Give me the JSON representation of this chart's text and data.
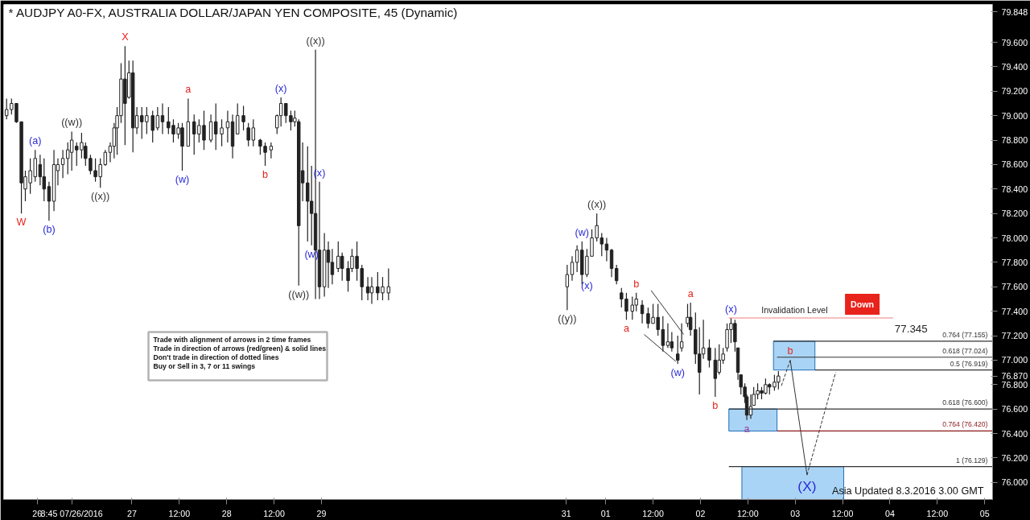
{
  "chart_data": {
    "type": "candlestick",
    "title": "* AUDJPY A0-FX, AUSTRALIA DOLLAR/JAPAN YEN COMPOSITE, 45 (Dynamic)",
    "x": [
      "2016-07-25T16:15",
      "2016-07-25T17:30",
      "2016-07-25T18:45",
      "2016-07-25T20:00",
      "2016-07-25T21:00",
      "2016-07-25T22:15",
      "2016-07-25T23:30",
      "2016-07-26T00:45",
      "2016-07-26T01:45",
      "2016-07-26T03:00",
      "2016-07-26T04:15",
      "2016-07-26T05:15",
      "2016-07-26T06:30",
      "2016-07-26T07:45",
      "2016-07-26T08:45",
      "2016-07-26T10:00",
      "2016-07-26T11:15",
      "2016-07-26T12:15",
      "2016-07-26T13:30",
      "2016-07-26T14:45",
      "2016-07-26T16:00",
      "2016-07-26T17:15",
      "2016-07-26T18:30",
      "2016-07-26T19:30",
      "2016-07-26T20:15",
      "2016-07-26T21:15",
      "2016-07-26T22:15",
      "2016-07-26T23:15",
      "2016-07-27T00:15",
      "2016-07-27T01:15",
      "2016-07-27T02:30",
      "2016-07-27T03:45",
      "2016-07-27T05:15",
      "2016-07-27T06:30",
      "2016-07-27T07:45",
      "2016-07-27T09:15",
      "2016-07-27T10:30",
      "2016-07-27T11:45",
      "2016-07-27T12:45",
      "2016-07-27T14:15",
      "2016-07-27T15:45",
      "2016-07-27T17:00",
      "2016-07-27T18:15",
      "2016-07-27T20:00",
      "2016-07-27T21:15",
      "2016-07-27T22:45",
      "2016-07-28T00:15",
      "2016-07-28T01:30",
      "2016-07-28T02:45",
      "2016-07-28T04:15",
      "2016-07-28T05:30",
      "2016-07-28T06:45",
      "2016-07-28T08:30",
      "2016-07-28T09:45",
      "2016-07-28T11:15",
      "2016-07-28T12:45",
      "2016-07-28T13:45",
      "2016-07-28T15:00",
      "2016-07-28T16:15",
      "2016-07-28T17:15",
      "2016-07-28T18:15",
      "2016-07-28T19:15",
      "2016-07-28T20:30",
      "2016-07-28T21:30",
      "2016-07-28T22:30",
      "2016-07-28T23:30",
      "2016-07-29T00:45",
      "2016-07-29T01:45",
      "2016-07-29T02:45",
      "2016-07-29T04:15",
      "2016-07-29T05:15",
      "2016-07-29T06:45",
      "2016-07-29T07:45",
      "2016-07-29T09:00",
      "2016-07-29T10:15",
      "2016-07-29T11:45",
      "2016-07-29T12:45",
      "2016-07-29T14:15",
      "2016-07-29T15:30",
      "2016-07-29T17:00",
      "2016-07-31T14:15",
      "2016-07-31T15:30",
      "2016-07-31T16:45",
      "2016-07-31T18:00",
      "2016-07-31T19:15",
      "2016-07-31T20:30",
      "2016-07-31T21:45",
      "2016-07-31T23:00",
      "2016-08-01T00:15",
      "2016-08-01T01:30",
      "2016-08-01T02:45",
      "2016-08-01T04:00",
      "2016-08-01T05:15",
      "2016-08-01T06:45",
      "2016-08-01T07:45",
      "2016-08-01T09:15",
      "2016-08-01T10:45",
      "2016-08-01T12:00",
      "2016-08-01T13:15",
      "2016-08-01T14:30",
      "2016-08-01T15:45",
      "2016-08-01T16:45",
      "2016-08-01T18:15",
      "2016-08-01T19:15",
      "2016-08-01T20:45",
      "2016-08-01T21:30",
      "2016-08-01T22:45",
      "2016-08-01T23:45",
      "2016-08-02T00:45",
      "2016-08-02T02:15",
      "2016-08-02T03:45",
      "2016-08-02T04:45",
      "2016-08-02T05:45",
      "2016-08-02T06:45",
      "2016-08-02T07:45",
      "2016-08-02T08:45",
      "2016-08-02T09:30",
      "2016-08-02T10:15",
      "2016-08-02T11:15",
      "2016-08-02T11:45",
      "2016-08-02T12:45",
      "2016-08-02T13:30",
      "2016-08-02T14:30",
      "2016-08-02T15:30",
      "2016-08-02T16:30",
      "2016-08-02T17:30",
      "2016-08-02T18:45",
      "2016-08-02T19:45"
    ],
    "ohlc": [
      [
        79.0,
        79.14,
        78.97,
        79.05
      ],
      [
        79.05,
        79.14,
        79.01,
        79.1
      ],
      [
        79.1,
        79.1,
        78.94,
        78.95
      ],
      [
        78.95,
        78.95,
        78.2,
        78.45
      ],
      [
        78.4,
        78.55,
        78.3,
        78.5
      ],
      [
        78.45,
        78.65,
        78.36,
        78.55
      ],
      [
        78.5,
        78.72,
        78.46,
        78.65
      ],
      [
        78.6,
        78.68,
        78.43,
        78.5
      ],
      [
        78.5,
        78.65,
        78.3,
        78.4
      ],
      [
        78.42,
        78.46,
        78.14,
        78.3
      ],
      [
        78.3,
        78.72,
        78.22,
        78.6
      ],
      [
        78.55,
        78.65,
        78.43,
        78.6
      ],
      [
        78.6,
        78.72,
        78.49,
        78.65
      ],
      [
        78.65,
        78.78,
        78.52,
        78.72
      ],
      [
        78.7,
        78.87,
        78.55,
        78.8
      ],
      [
        78.75,
        78.78,
        78.59,
        78.72
      ],
      [
        78.72,
        78.86,
        78.65,
        78.78
      ],
      [
        78.75,
        78.78,
        78.59,
        78.65
      ],
      [
        78.65,
        78.68,
        78.52,
        78.55
      ],
      [
        78.55,
        78.65,
        78.46,
        78.5
      ],
      [
        78.5,
        78.65,
        78.41,
        78.6
      ],
      [
        78.6,
        78.72,
        78.59,
        78.7
      ],
      [
        78.7,
        78.78,
        78.62,
        78.75
      ],
      [
        78.75,
        78.94,
        78.65,
        78.9
      ],
      [
        78.9,
        79.07,
        78.68,
        79.0
      ],
      [
        79.0,
        79.43,
        78.94,
        79.3
      ],
      [
        79.3,
        79.57,
        78.76,
        79.1
      ],
      [
        79.15,
        79.45,
        79.14,
        79.35
      ],
      [
        79.35,
        79.45,
        78.7,
        78.9
      ],
      [
        78.9,
        79.07,
        78.85,
        79.0
      ],
      [
        79.0,
        79.07,
        78.81,
        78.95
      ],
      [
        78.95,
        79.07,
        78.85,
        79.0
      ],
      [
        79.0,
        79.04,
        78.78,
        78.88
      ],
      [
        78.9,
        79.07,
        78.88,
        79.0
      ],
      [
        79.0,
        79.1,
        78.85,
        78.95
      ],
      [
        78.95,
        79.07,
        78.85,
        78.9
      ],
      [
        78.92,
        78.97,
        78.78,
        78.85
      ],
      [
        78.85,
        78.94,
        78.81,
        78.9
      ],
      [
        78.9,
        78.94,
        78.55,
        78.75
      ],
      [
        78.75,
        79.14,
        78.75,
        78.95
      ],
      [
        78.95,
        79.01,
        78.68,
        78.85
      ],
      [
        78.85,
        78.97,
        78.78,
        78.92
      ],
      [
        78.92,
        79.04,
        78.72,
        78.8
      ],
      [
        78.8,
        79.01,
        78.78,
        78.95
      ],
      [
        78.95,
        79.1,
        78.72,
        78.85
      ],
      [
        78.85,
        78.97,
        78.75,
        78.9
      ],
      [
        78.9,
        79.04,
        78.78,
        78.95
      ],
      [
        78.95,
        79.01,
        78.65,
        78.75
      ],
      [
        78.85,
        79.1,
        78.85,
        79.0
      ],
      [
        79.0,
        79.08,
        78.88,
        78.95
      ],
      [
        78.9,
        78.94,
        78.75,
        78.8
      ],
      [
        78.8,
        78.97,
        78.75,
        78.9
      ],
      [
        78.8,
        78.81,
        78.68,
        78.75
      ],
      [
        78.75,
        78.78,
        78.59,
        78.7
      ],
      [
        78.72,
        78.78,
        78.65,
        78.75
      ],
      [
        78.9,
        79.01,
        78.85,
        79.0
      ],
      [
        79.0,
        79.15,
        78.91,
        79.1
      ],
      [
        79.1,
        79.1,
        78.94,
        79.0
      ],
      [
        79.0,
        79.04,
        78.88,
        78.95
      ],
      [
        78.95,
        79.04,
        78.91,
        78.98
      ],
      [
        78.95,
        78.97,
        77.61,
        78.1
      ],
      [
        78.55,
        78.78,
        78.3,
        78.45
      ],
      [
        78.45,
        78.75,
        77.97,
        78.3
      ],
      [
        78.3,
        78.59,
        77.94,
        78.2
      ],
      [
        78.2,
        79.54,
        77.5,
        77.9
      ],
      [
        77.9,
        78.46,
        77.5,
        77.6
      ],
      [
        77.6,
        78.04,
        77.52,
        77.9
      ],
      [
        77.9,
        77.97,
        77.59,
        77.8
      ],
      [
        77.8,
        77.91,
        77.62,
        77.7
      ],
      [
        77.75,
        77.97,
        77.72,
        77.85
      ],
      [
        77.85,
        77.88,
        77.65,
        77.75
      ],
      [
        77.75,
        77.81,
        77.56,
        77.65
      ],
      [
        77.75,
        77.91,
        77.72,
        77.85
      ],
      [
        77.85,
        77.97,
        77.65,
        77.75
      ],
      [
        77.75,
        77.78,
        77.49,
        77.6
      ],
      [
        77.6,
        77.68,
        77.49,
        77.55
      ],
      [
        77.55,
        77.68,
        77.46,
        77.6
      ],
      [
        77.6,
        77.72,
        77.49,
        77.55
      ],
      [
        77.55,
        77.68,
        77.49,
        77.6
      ],
      [
        77.55,
        77.75,
        77.49,
        77.6
      ],
      [
        77.6,
        77.78,
        77.41,
        77.7
      ],
      [
        77.7,
        77.85,
        77.65,
        77.8
      ],
      [
        77.8,
        77.94,
        77.72,
        77.9
      ],
      [
        77.9,
        77.97,
        77.62,
        77.7
      ],
      [
        77.7,
        77.91,
        77.68,
        77.85
      ],
      [
        77.85,
        78.07,
        77.85,
        78.0
      ],
      [
        78.0,
        78.2,
        77.97,
        78.1
      ],
      [
        78.0,
        78.04,
        77.85,
        77.95
      ],
      [
        77.95,
        78.0,
        77.81,
        77.9
      ],
      [
        77.9,
        77.91,
        77.68,
        77.75
      ],
      [
        77.75,
        77.78,
        77.62,
        77.65
      ],
      [
        77.55,
        77.59,
        77.43,
        77.5
      ],
      [
        77.5,
        77.55,
        77.33,
        77.4
      ],
      [
        77.4,
        77.52,
        77.33,
        77.45
      ],
      [
        77.45,
        77.55,
        77.4,
        77.5
      ],
      [
        77.45,
        77.49,
        77.3,
        77.38
      ],
      [
        77.38,
        77.43,
        77.26,
        77.3
      ],
      [
        77.3,
        77.46,
        77.3,
        77.35
      ],
      [
        77.35,
        77.46,
        77.2,
        77.25
      ],
      [
        77.25,
        77.36,
        77.07,
        77.12
      ],
      [
        77.12,
        77.3,
        77.1,
        77.15
      ],
      [
        77.15,
        77.23,
        77.07,
        77.1
      ],
      [
        77.05,
        77.2,
        76.97,
        77.0
      ],
      [
        77.1,
        77.3,
        77.07,
        77.15
      ],
      [
        77.3,
        77.46,
        77.27,
        77.35
      ],
      [
        77.35,
        77.47,
        77.2,
        77.25
      ],
      [
        77.25,
        77.39,
        76.97,
        77.05
      ],
      [
        77.05,
        77.27,
        76.72,
        76.9
      ],
      [
        77.05,
        77.33,
        77.01,
        77.1
      ],
      [
        77.1,
        77.17,
        76.94,
        77.0
      ],
      [
        77.0,
        77.1,
        76.7,
        76.85
      ],
      [
        76.9,
        77.13,
        76.88,
        77.0
      ],
      [
        77.0,
        77.1,
        76.97,
        77.05
      ],
      [
        77.1,
        77.3,
        77.07,
        77.25
      ],
      [
        77.25,
        77.345,
        77.14,
        77.3
      ],
      [
        77.3,
        77.33,
        77.07,
        77.15
      ],
      [
        77.1,
        77.1,
        76.84,
        76.9
      ],
      [
        76.88,
        76.88,
        76.72,
        76.78
      ],
      [
        76.78,
        76.81,
        76.65,
        76.7
      ],
      [
        76.7,
        76.72,
        76.51,
        76.55
      ],
      [
        76.55,
        76.72,
        76.52,
        76.62
      ],
      [
        76.63,
        76.78,
        76.63,
        76.72
      ],
      [
        76.72,
        76.81,
        76.68,
        76.75
      ],
      [
        76.75,
        76.78,
        76.68,
        76.73
      ],
      [
        76.73,
        76.85,
        76.72,
        76.8
      ],
      [
        76.8,
        76.81,
        76.72,
        76.78
      ],
      [
        76.78,
        76.88,
        76.75,
        76.82
      ],
      [
        76.82,
        76.91,
        76.76,
        76.87
      ]
    ],
    "color": "#222222",
    "series": [
      {
        "type": "line",
        "color": "#333333",
        "line_style": "solid",
        "x": [
          "2016-08-02T22:45",
          "2016-08-03T03:00"
        ],
        "values": [
          77.0,
          76.06
        ]
      },
      {
        "type": "line",
        "color": "#333333",
        "line_style": "dashed",
        "x": [
          "2016-08-03T03:00",
          "2016-08-03T10:15"
        ],
        "values": [
          76.06,
          76.9
        ]
      },
      {
        "type": "line",
        "color": "#333333",
        "line_style": "dashed",
        "x": [
          "2016-08-02T20:30",
          "2016-08-02T22:45"
        ],
        "values": [
          76.79,
          77.0
        ]
      },
      {
        "type": "line",
        "color": "#333333",
        "line_style": "solid",
        "x": [
          "2016-08-01T11:30",
          "2016-08-01T19:45"
        ],
        "values": [
          77.57,
          77.21
        ]
      },
      {
        "type": "line",
        "color": "#333333",
        "line_style": "solid",
        "x": [
          "2016-08-01T09:45",
          "2016-08-01T17:45"
        ],
        "values": [
          77.21,
          76.99
        ]
      }
    ],
    "xlim": [
      "2016-07-25T15:30",
      "2016-08-05T02:00"
    ],
    "ylim": [
      75.86,
      79.91
    ],
    "xticks": [
      {
        "value": "2016-07-26",
        "label": "26"
      },
      {
        "value": "2016-07-26T08:45",
        "label": "8:45 07/26/2016"
      },
      {
        "value": "2016-07-27",
        "label": "27"
      },
      {
        "value": "2016-07-27T12:00",
        "label": "12:00"
      },
      {
        "value": "2016-07-28",
        "label": "28"
      },
      {
        "value": "2016-07-28T12:00",
        "label": "12:00"
      },
      {
        "value": "2016-07-29",
        "label": "29"
      },
      {
        "value": "2016-07-31T14:00",
        "label": "31"
      },
      {
        "value": "2016-08-01",
        "label": "01"
      },
      {
        "value": "2016-08-01T12:00",
        "label": "12:00"
      },
      {
        "value": "2016-08-02",
        "label": "02"
      },
      {
        "value": "2016-08-02T12:00",
        "label": "12:00"
      },
      {
        "value": "2016-08-03",
        "label": "03"
      },
      {
        "value": "2016-08-03T12:00",
        "label": "12:00"
      },
      {
        "value": "2016-08-04",
        "label": "04"
      },
      {
        "value": "2016-08-04T12:00",
        "label": "12:00"
      },
      {
        "value": "2016-08-05",
        "label": "05"
      }
    ],
    "yticks": [
      {
        "value": 76.0,
        "label": "76.000"
      },
      {
        "value": 76.2,
        "label": "76.200"
      },
      {
        "value": 76.4,
        "label": "76.400"
      },
      {
        "value": 76.6,
        "label": "76.600"
      },
      {
        "value": 76.8,
        "label": "76.800"
      },
      {
        "value": 76.87,
        "label": "76.870"
      },
      {
        "value": 77.0,
        "label": "77.000"
      },
      {
        "value": 77.2,
        "label": "77.200"
      },
      {
        "value": 77.4,
        "label": "77.400"
      },
      {
        "value": 77.6,
        "label": "77.600"
      },
      {
        "value": 77.8,
        "label": "77.800"
      },
      {
        "value": 78.0,
        "label": "78.000"
      },
      {
        "value": 78.2,
        "label": "78.200"
      },
      {
        "value": 78.4,
        "label": "78.400"
      },
      {
        "value": 78.6,
        "label": "78.600"
      },
      {
        "value": 78.8,
        "label": "78.800"
      },
      {
        "value": 79.0,
        "label": "79.000"
      },
      {
        "value": 79.2,
        "label": "79.200"
      },
      {
        "value": 79.4,
        "label": "79.400"
      },
      {
        "value": 79.6,
        "label": "79.600"
      },
      {
        "value": 79.848,
        "label": "79.848"
      }
    ],
    "ref_lines": [
      {
        "axis": "y",
        "value": 77.345,
        "label": "Invalidation Level",
        "color": "#f08080"
      },
      {
        "axis": "y",
        "value": 77.155,
        "label": "0.764 (77.155)",
        "color": "#333333"
      },
      {
        "axis": "y",
        "value": 77.024,
        "label": "0.618 (77.024)",
        "color": "#333333"
      },
      {
        "axis": "y",
        "value": 76.919,
        "label": "0.5 (76.919)",
        "color": "#333333"
      },
      {
        "axis": "y",
        "value": 76.6,
        "label": "0.618 (76.600)",
        "color": "#333333"
      },
      {
        "axis": "y",
        "value": 76.42,
        "label": "0.764 (76.420)",
        "color": "#8b1a1a"
      },
      {
        "axis": "y",
        "value": 76.129,
        "label": "1 (76.129)",
        "color": "#333333"
      }
    ],
    "bands": [
      {
        "axis": "y",
        "from": 76.919,
        "to": 77.155,
        "color": "#aad4f5"
      },
      {
        "axis": "y",
        "from": 76.42,
        "to": 76.6,
        "color": "#aad4f5"
      },
      {
        "axis": "y",
        "from": 75.86,
        "to": 76.129,
        "color": "#aad4f5"
      }
    ],
    "annotations": [
      {
        "text": "W",
        "x": "2016-07-25T20:00",
        "y": 78.2
      },
      {
        "text": "X",
        "x": "2016-07-26T22:15",
        "y": 79.57
      },
      {
        "text": "(a)",
        "x": "2016-07-25T23:30",
        "y": 78.72
      },
      {
        "text": "(b)",
        "x": "2016-07-26T03:00",
        "y": 78.14
      },
      {
        "text": "((w))",
        "x": "2016-07-26T08:45",
        "y": 78.87
      },
      {
        "text": "((x))",
        "x": "2016-07-26T16:00",
        "y": 78.41
      },
      {
        "text": "a",
        "x": "2016-07-27T14:15",
        "y": 79.14
      },
      {
        "text": "(w)",
        "x": "2016-07-27T12:45",
        "y": 78.55
      },
      {
        "text": "b",
        "x": "2016-07-28T09:45",
        "y": 78.59
      },
      {
        "text": "(x)",
        "x": "2016-07-28T13:45",
        "y": 79.15
      },
      {
        "text": "((x))",
        "x": "2016-07-28T22:30",
        "y": 79.54
      },
      {
        "text": "(x)",
        "x": "2016-07-28T23:30",
        "y": 78.46
      },
      {
        "text": "(w)",
        "x": "2016-07-28T21:30",
        "y": 77.94
      },
      {
        "text": "((w))",
        "x": "2016-07-28T18:15",
        "y": 77.61
      },
      {
        "text": "((y))",
        "x": "2016-07-31T14:15",
        "y": 77.41
      },
      {
        "text": "(w)",
        "x": "2016-07-31T18:00",
        "y": 77.97
      },
      {
        "text": "(x)",
        "x": "2016-07-31T19:15",
        "y": 77.68
      },
      {
        "text": "((x))",
        "x": "2016-07-31T21:45",
        "y": 78.2
      },
      {
        "text": "b",
        "x": "2016-08-01T07:45",
        "y": 77.55
      },
      {
        "text": "a",
        "x": "2016-08-01T05:15",
        "y": 77.33
      },
      {
        "text": "(w)",
        "x": "2016-08-01T18:15",
        "y": 76.97
      },
      {
        "text": "a",
        "x": "2016-08-01T21:30",
        "y": 77.47
      },
      {
        "text": "b",
        "x": "2016-08-02T03:45",
        "y": 76.7
      },
      {
        "text": "(x)",
        "x": "2016-08-02T07:45",
        "y": 77.345
      },
      {
        "text": "b",
        "x": "2016-08-02T22:45",
        "y": 77.0
      },
      {
        "text": "a",
        "x": "2016-08-02T11:45",
        "y": 76.51
      },
      {
        "text": "(X)",
        "x": "2016-08-03T03:00",
        "y": 76.06
      },
      "Trade with alignment of arrows in 2 time frames",
      "Trade in direction of arrows (red/green) & solid lines",
      "Don't trade in direction of dotted lines",
      "Buy or Sell in 3, 7 or 11 swings",
      "Down",
      "Asia Updated 8.3.2016 3.00 GMT",
      "77.345"
    ]
  }
}
